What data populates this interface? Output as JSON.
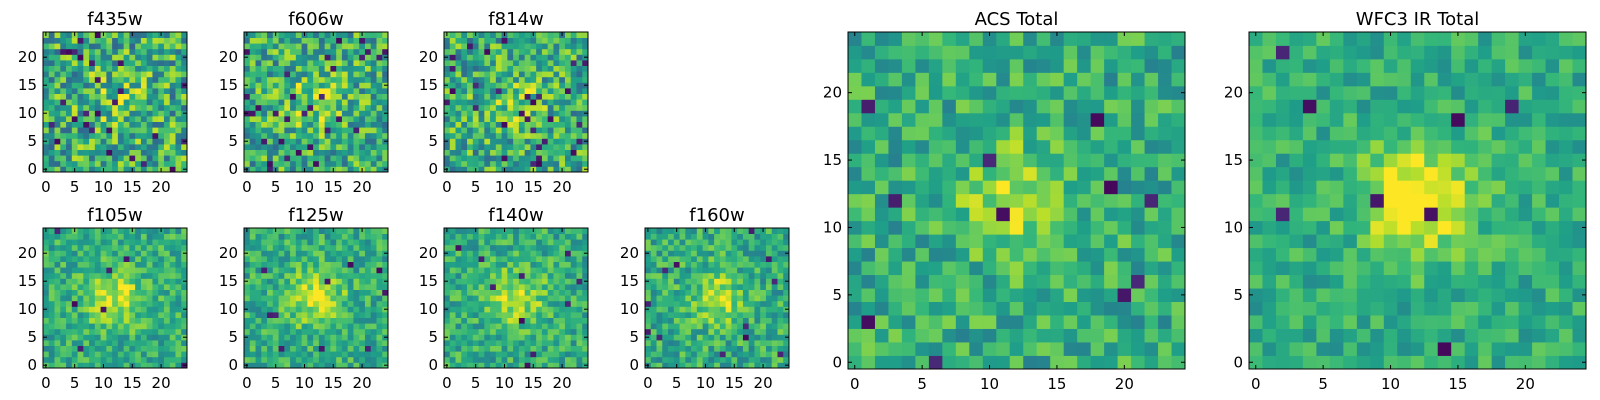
{
  "chart_data": [
    {
      "type": "heatmap",
      "title": "f435w",
      "xticks": [
        "0",
        "5",
        "10",
        "15",
        "20"
      ],
      "yticks": [
        "0",
        "5",
        "10",
        "15",
        "20"
      ],
      "xlim": [
        0,
        25
      ],
      "ylim": [
        0,
        25
      ],
      "colormap": "viridis",
      "seed": 11,
      "noise": 0.55,
      "peak": 0.12,
      "blob_sigma": 4.0,
      "dark_pixels": 0.035
    },
    {
      "type": "heatmap",
      "title": "f606w",
      "xticks": [
        "0",
        "5",
        "10",
        "15",
        "20"
      ],
      "yticks": [
        "0",
        "5",
        "10",
        "15",
        "20"
      ],
      "xlim": [
        0,
        25
      ],
      "ylim": [
        0,
        25
      ],
      "colormap": "viridis",
      "seed": 23,
      "noise": 0.5,
      "peak": 0.22,
      "blob_sigma": 3.5,
      "dark_pixels": 0.045
    },
    {
      "type": "heatmap",
      "title": "f814w",
      "xticks": [
        "0",
        "5",
        "10",
        "15",
        "20"
      ],
      "yticks": [
        "0",
        "5",
        "10",
        "15",
        "20"
      ],
      "xlim": [
        0,
        25
      ],
      "ylim": [
        0,
        25
      ],
      "colormap": "viridis",
      "seed": 37,
      "noise": 0.5,
      "peak": 0.18,
      "blob_sigma": 3.5,
      "dark_pixels": 0.04
    },
    {
      "type": "heatmap",
      "title": "f105w",
      "xticks": [
        "0",
        "5",
        "10",
        "15",
        "20"
      ],
      "yticks": [
        "0",
        "5",
        "10",
        "15",
        "20"
      ],
      "xlim": [
        0,
        25
      ],
      "ylim": [
        0,
        25
      ],
      "colormap": "viridis",
      "seed": 41,
      "noise": 0.32,
      "peak": 0.3,
      "blob_sigma": 3.5,
      "dark_pixels": 0.012
    },
    {
      "type": "heatmap",
      "title": "f125w",
      "xticks": [
        "0",
        "5",
        "10",
        "15",
        "20"
      ],
      "yticks": [
        "0",
        "5",
        "10",
        "15",
        "20"
      ],
      "xlim": [
        0,
        25
      ],
      "ylim": [
        0,
        25
      ],
      "colormap": "viridis",
      "seed": 53,
      "noise": 0.32,
      "peak": 0.3,
      "blob_sigma": 3.5,
      "dark_pixels": 0.012
    },
    {
      "type": "heatmap",
      "title": "f140w",
      "xticks": [
        "0",
        "5",
        "10",
        "15",
        "20"
      ],
      "yticks": [
        "0",
        "5",
        "10",
        "15",
        "20"
      ],
      "xlim": [
        0,
        25
      ],
      "ylim": [
        0,
        25
      ],
      "colormap": "viridis",
      "seed": 67,
      "noise": 0.32,
      "peak": 0.3,
      "blob_sigma": 3.5,
      "dark_pixels": 0.012
    },
    {
      "type": "heatmap",
      "title": "f160w",
      "xticks": [
        "0",
        "5",
        "10",
        "15",
        "20"
      ],
      "yticks": [
        "0",
        "5",
        "10",
        "15",
        "20"
      ],
      "xlim": [
        0,
        25
      ],
      "ylim": [
        0,
        25
      ],
      "colormap": "viridis",
      "seed": 79,
      "noise": 0.34,
      "peak": 0.3,
      "blob_sigma": 3.0,
      "dark_pixels": 0.012
    },
    {
      "type": "heatmap",
      "title": "ACS Total",
      "xticks": [
        "0",
        "5",
        "10",
        "15",
        "20"
      ],
      "yticks": [
        "0",
        "5",
        "10",
        "15",
        "20"
      ],
      "xlim": [
        0,
        25
      ],
      "ylim": [
        0,
        25
      ],
      "colormap": "viridis",
      "seed": 97,
      "noise": 0.34,
      "peak": 0.28,
      "blob_sigma": 3.0,
      "dark_pixels": 0.02
    },
    {
      "type": "heatmap",
      "title": "WFC3 IR Total",
      "xticks": [
        "0",
        "5",
        "10",
        "15",
        "20"
      ],
      "yticks": [
        "0",
        "5",
        "10",
        "15",
        "20"
      ],
      "xlim": [
        0,
        25
      ],
      "ylim": [
        0,
        25
      ],
      "colormap": "viridis",
      "seed": 113,
      "noise": 0.26,
      "peak": 0.5,
      "blob_sigma": 2.8,
      "dark_pixels": 0.015
    }
  ]
}
